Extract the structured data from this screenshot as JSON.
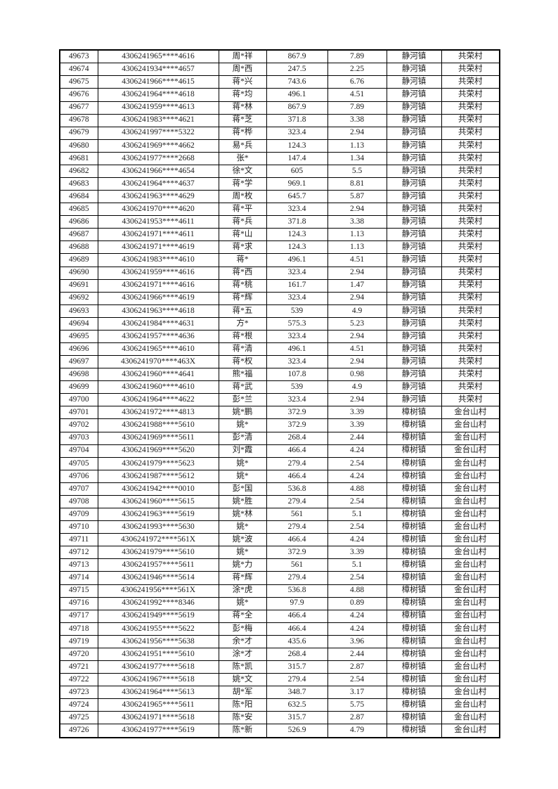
{
  "page": {
    "background_color": "#ffffff",
    "text_color": "#1c1c1c",
    "border_color": "#000000"
  },
  "table": {
    "rows": [
      [
        "49673",
        "4306241965****4616",
        "周*祥",
        "867.9",
        "7.89",
        "静河镇",
        "共荣村"
      ],
      [
        "49674",
        "4306241934****4657",
        "周*西",
        "247.5",
        "2.25",
        "静河镇",
        "共荣村"
      ],
      [
        "49675",
        "4306241966****4615",
        "蒋*兴",
        "743.6",
        "6.76",
        "静河镇",
        "共荣村"
      ],
      [
        "49676",
        "4306241964****4618",
        "蒋*均",
        "496.1",
        "4.51",
        "静河镇",
        "共荣村"
      ],
      [
        "49677",
        "4306241959****4613",
        "蒋*林",
        "867.9",
        "7.89",
        "静河镇",
        "共荣村"
      ],
      [
        "49678",
        "4306241983****4621",
        "蒋*芝",
        "371.8",
        "3.38",
        "静河镇",
        "共荣村"
      ],
      [
        "49679",
        "4306241997****5322",
        "蒋*桦",
        "323.4",
        "2.94",
        "静河镇",
        "共荣村"
      ],
      [
        "49680",
        "4306241969****4662",
        "易*兵",
        "124.3",
        "1.13",
        "静河镇",
        "共荣村"
      ],
      [
        "49681",
        "4306241977****2668",
        "张*",
        "147.4",
        "1.34",
        "静河镇",
        "共荣村"
      ],
      [
        "49682",
        "4306241966****4654",
        "徐*文",
        "605",
        "5.5",
        "静河镇",
        "共荣村"
      ],
      [
        "49683",
        "4306241964****4637",
        "蒋*学",
        "969.1",
        "8.81",
        "静河镇",
        "共荣村"
      ],
      [
        "49684",
        "4306241963****4629",
        "周*枚",
        "645.7",
        "5.87",
        "静河镇",
        "共荣村"
      ],
      [
        "49685",
        "4306241970****4620",
        "蒋*平",
        "323.4",
        "2.94",
        "静河镇",
        "共荣村"
      ],
      [
        "49686",
        "4306241953****4611",
        "蒋*兵",
        "371.8",
        "3.38",
        "静河镇",
        "共荣村"
      ],
      [
        "49687",
        "4306241971****4611",
        "蒋*山",
        "124.3",
        "1.13",
        "静河镇",
        "共荣村"
      ],
      [
        "49688",
        "4306241971****4619",
        "蒋*求",
        "124.3",
        "1.13",
        "静河镇",
        "共荣村"
      ],
      [
        "49689",
        "4306241983****4610",
        "蒋*",
        "496.1",
        "4.51",
        "静河镇",
        "共荣村"
      ],
      [
        "49690",
        "4306241959****4616",
        "蒋*西",
        "323.4",
        "2.94",
        "静河镇",
        "共荣村"
      ],
      [
        "49691",
        "4306241971****4616",
        "蒋*桃",
        "161.7",
        "1.47",
        "静河镇",
        "共荣村"
      ],
      [
        "49692",
        "4306241966****4619",
        "蒋*辉",
        "323.4",
        "2.94",
        "静河镇",
        "共荣村"
      ],
      [
        "49693",
        "4306241963****4618",
        "蒋*五",
        "539",
        "4.9",
        "静河镇",
        "共荣村"
      ],
      [
        "49694",
        "4306241984****4631",
        "方*",
        "575.3",
        "5.23",
        "静河镇",
        "共荣村"
      ],
      [
        "49695",
        "4306241957****4636",
        "蒋*根",
        "323.4",
        "2.94",
        "静河镇",
        "共荣村"
      ],
      [
        "49696",
        "4306241965****4610",
        "蒋*清",
        "496.1",
        "4.51",
        "静河镇",
        "共荣村"
      ],
      [
        "49697",
        "4306241970****463X",
        "蒋*权",
        "323.4",
        "2.94",
        "静河镇",
        "共荣村"
      ],
      [
        "49698",
        "4306241960****4641",
        "熊*福",
        "107.8",
        "0.98",
        "静河镇",
        "共荣村"
      ],
      [
        "49699",
        "4306241960****4610",
        "蒋*武",
        "539",
        "4.9",
        "静河镇",
        "共荣村"
      ],
      [
        "49700",
        "4306241964****4622",
        "彭*兰",
        "323.4",
        "2.94",
        "静河镇",
        "共荣村"
      ],
      [
        "49701",
        "4306241972****4813",
        "姚*鹏",
        "372.9",
        "3.39",
        "樟树镇",
        "金台山村"
      ],
      [
        "49702",
        "4306241988****5610",
        "姚*",
        "372.9",
        "3.39",
        "樟树镇",
        "金台山村"
      ],
      [
        "49703",
        "4306241969****5611",
        "彭*清",
        "268.4",
        "2.44",
        "樟树镇",
        "金台山村"
      ],
      [
        "49704",
        "4306241969****5620",
        "刘*霞",
        "466.4",
        "4.24",
        "樟树镇",
        "金台山村"
      ],
      [
        "49705",
        "4306241979****5623",
        "姚*",
        "279.4",
        "2.54",
        "樟树镇",
        "金台山村"
      ],
      [
        "49706",
        "4306241987****5612",
        "姚*",
        "466.4",
        "4.24",
        "樟树镇",
        "金台山村"
      ],
      [
        "49707",
        "4306241942****0010",
        "彭*国",
        "536.8",
        "4.88",
        "樟树镇",
        "金台山村"
      ],
      [
        "49708",
        "4306241960****5615",
        "姚*胜",
        "279.4",
        "2.54",
        "樟树镇",
        "金台山村"
      ],
      [
        "49709",
        "4306241963****5619",
        "姚*林",
        "561",
        "5.1",
        "樟树镇",
        "金台山村"
      ],
      [
        "49710",
        "4306241993****5630",
        "姚*",
        "279.4",
        "2.54",
        "樟树镇",
        "金台山村"
      ],
      [
        "49711",
        "4306241972****561X",
        "姚*波",
        "466.4",
        "4.24",
        "樟树镇",
        "金台山村"
      ],
      [
        "49712",
        "4306241979****5610",
        "姚*",
        "372.9",
        "3.39",
        "樟树镇",
        "金台山村"
      ],
      [
        "49713",
        "4306241957****5611",
        "姚*力",
        "561",
        "5.1",
        "樟树镇",
        "金台山村"
      ],
      [
        "49714",
        "4306241946****5614",
        "蒋*辉",
        "279.4",
        "2.54",
        "樟树镇",
        "金台山村"
      ],
      [
        "49715",
        "4306241956****561X",
        "涂*虎",
        "536.8",
        "4.88",
        "樟树镇",
        "金台山村"
      ],
      [
        "49716",
        "4306241992****8346",
        "姚*",
        "97.9",
        "0.89",
        "樟树镇",
        "金台山村"
      ],
      [
        "49717",
        "4306241949****5619",
        "蒋*全",
        "466.4",
        "4.24",
        "樟树镇",
        "金台山村"
      ],
      [
        "49718",
        "4306241955****5622",
        "彭*梅",
        "466.4",
        "4.24",
        "樟树镇",
        "金台山村"
      ],
      [
        "49719",
        "4306241956****5638",
        "余*才",
        "435.6",
        "3.96",
        "樟树镇",
        "金台山村"
      ],
      [
        "49720",
        "4306241951****5610",
        "涂*才",
        "268.4",
        "2.44",
        "樟树镇",
        "金台山村"
      ],
      [
        "49721",
        "4306241977****5618",
        "陈*凯",
        "315.7",
        "2.87",
        "樟树镇",
        "金台山村"
      ],
      [
        "49722",
        "4306241967****5618",
        "姚*文",
        "279.4",
        "2.54",
        "樟树镇",
        "金台山村"
      ],
      [
        "49723",
        "4306241964****5613",
        "胡*军",
        "348.7",
        "3.17",
        "樟树镇",
        "金台山村"
      ],
      [
        "49724",
        "4306241965****5611",
        "陈*阳",
        "632.5",
        "5.75",
        "樟树镇",
        "金台山村"
      ],
      [
        "49725",
        "4306241971****5618",
        "陈*安",
        "315.7",
        "2.87",
        "樟树镇",
        "金台山村"
      ],
      [
        "49726",
        "4306241977****5619",
        "陈*新",
        "526.9",
        "4.79",
        "樟树镇",
        "金台山村"
      ]
    ]
  }
}
